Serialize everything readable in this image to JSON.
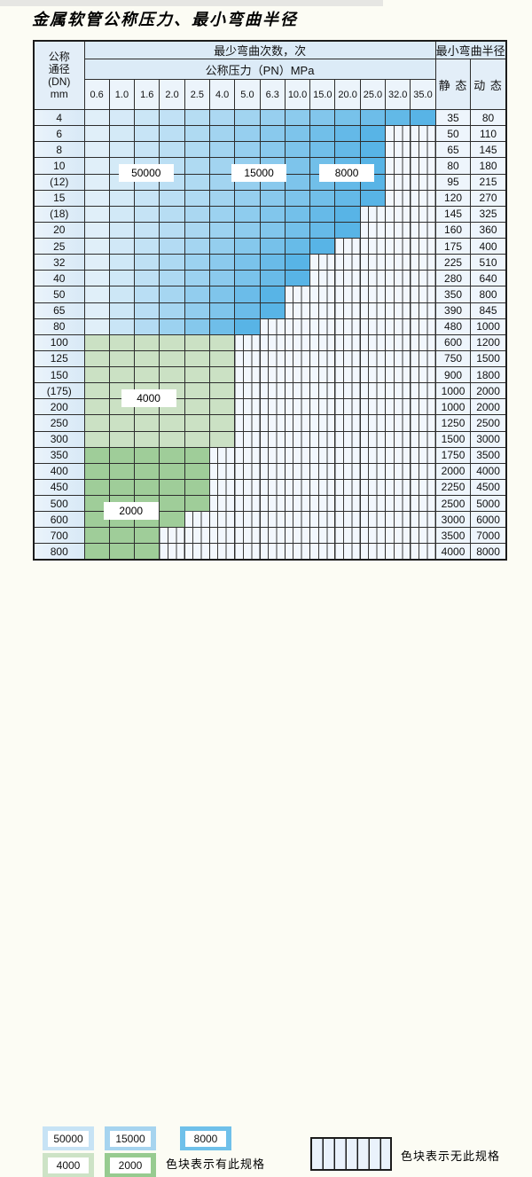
{
  "page_title": "金属软管公称压力、最小弯曲半径",
  "colors": {
    "blue_light": "#e0eff9",
    "blue_dark": "#58b4e6",
    "green_light": "#cbe1c4",
    "green_dark": "#9fcd99",
    "hatch_bg": "#f2f7fd",
    "header_bg": "#dcebf7",
    "page_bg": "#fcfcf4"
  },
  "table": {
    "corner_lines": [
      "公称",
      "通径",
      "(DN)",
      "mm"
    ],
    "bend_times_header": "最少弯曲次数，次",
    "pressure_header": "公称压力（PN）MPa",
    "pressure_columns": [
      "0.6",
      "1.0",
      "1.6",
      "2.0",
      "2.5",
      "4.0",
      "5.0",
      "6.3",
      "10.0",
      "15.0",
      "20.0",
      "25.0",
      "32.0",
      "35.0"
    ],
    "radius_header": "最小弯曲半径",
    "static_header": "静 态",
    "dynamic_header": "动 态",
    "rows": [
      {
        "dn": "4",
        "spec_cols": 14,
        "group": "blue",
        "static": "35",
        "dynamic": "80"
      },
      {
        "dn": "6",
        "spec_cols": 12,
        "group": "blue",
        "static": "50",
        "dynamic": "110"
      },
      {
        "dn": "8",
        "spec_cols": 12,
        "group": "blue",
        "static": "65",
        "dynamic": "145"
      },
      {
        "dn": "10",
        "spec_cols": 12,
        "group": "blue",
        "static": "80",
        "dynamic": "180"
      },
      {
        "dn": "(12)",
        "spec_cols": 12,
        "group": "blue",
        "static": "95",
        "dynamic": "215"
      },
      {
        "dn": "15",
        "spec_cols": 12,
        "group": "blue",
        "static": "120",
        "dynamic": "270"
      },
      {
        "dn": "(18)",
        "spec_cols": 11,
        "group": "blue",
        "static": "145",
        "dynamic": "325"
      },
      {
        "dn": "20",
        "spec_cols": 11,
        "group": "blue",
        "static": "160",
        "dynamic": "360"
      },
      {
        "dn": "25",
        "spec_cols": 10,
        "group": "blue",
        "static": "175",
        "dynamic": "400"
      },
      {
        "dn": "32",
        "spec_cols": 9,
        "group": "blue",
        "static": "225",
        "dynamic": "510"
      },
      {
        "dn": "40",
        "spec_cols": 9,
        "group": "blue",
        "static": "280",
        "dynamic": "640"
      },
      {
        "dn": "50",
        "spec_cols": 8,
        "group": "blue",
        "static": "350",
        "dynamic": "800"
      },
      {
        "dn": "65",
        "spec_cols": 8,
        "group": "blue",
        "static": "390",
        "dynamic": "845"
      },
      {
        "dn": "80",
        "spec_cols": 7,
        "group": "blue",
        "static": "480",
        "dynamic": "1000"
      },
      {
        "dn": "100",
        "spec_cols": 6,
        "group": "green_light",
        "static": "600",
        "dynamic": "1200"
      },
      {
        "dn": "125",
        "spec_cols": 6,
        "group": "green_light",
        "static": "750",
        "dynamic": "1500"
      },
      {
        "dn": "150",
        "spec_cols": 6,
        "group": "green_light",
        "static": "900",
        "dynamic": "1800"
      },
      {
        "dn": "(175)",
        "spec_cols": 6,
        "group": "green_light",
        "static": "1000",
        "dynamic": "2000"
      },
      {
        "dn": "200",
        "spec_cols": 6,
        "group": "green_light",
        "static": "1000",
        "dynamic": "2000"
      },
      {
        "dn": "250",
        "spec_cols": 6,
        "group": "green_light",
        "static": "1250",
        "dynamic": "2500"
      },
      {
        "dn": "300",
        "spec_cols": 6,
        "group": "green_light",
        "static": "1500",
        "dynamic": "3000"
      },
      {
        "dn": "350",
        "spec_cols": 5,
        "group": "green_dark",
        "static": "1750",
        "dynamic": "3500"
      },
      {
        "dn": "400",
        "spec_cols": 5,
        "group": "green_dark",
        "static": "2000",
        "dynamic": "4000"
      },
      {
        "dn": "450",
        "spec_cols": 5,
        "group": "green_dark",
        "static": "2250",
        "dynamic": "4500"
      },
      {
        "dn": "500",
        "spec_cols": 5,
        "group": "green_dark",
        "static": "2500",
        "dynamic": "5000"
      },
      {
        "dn": "600",
        "spec_cols": 4,
        "group": "green_dark",
        "static": "3000",
        "dynamic": "6000"
      },
      {
        "dn": "700",
        "spec_cols": 3,
        "group": "green_dark",
        "static": "3500",
        "dynamic": "7000"
      },
      {
        "dn": "800",
        "spec_cols": 3,
        "group": "green_dark",
        "static": "4000",
        "dynamic": "8000"
      }
    ]
  },
  "overlay_labels": [
    {
      "text": "50000",
      "col_anchor": 2.5,
      "row_anchor": 4
    },
    {
      "text": "15000",
      "col_anchor": 7.0,
      "row_anchor": 4
    },
    {
      "text": "8000",
      "col_anchor": 10.5,
      "row_anchor": 4
    },
    {
      "text": "4000",
      "col_anchor": 2.6,
      "row_anchor": 18
    },
    {
      "text": "2000",
      "col_anchor": 1.9,
      "row_anchor": 25
    }
  ],
  "legend": {
    "swatches": [
      {
        "label": "50000",
        "color": "#c7e3f5"
      },
      {
        "label": "15000",
        "color": "#a6d4ef"
      },
      {
        "label": "8000",
        "color": "#6fc0ea"
      },
      {
        "label": "4000",
        "color": "#cde3c6"
      },
      {
        "label": "2000",
        "color": "#97cb90"
      }
    ],
    "has_spec_text": "色块表示有此规格",
    "no_spec_text": "色块表示无此规格"
  }
}
